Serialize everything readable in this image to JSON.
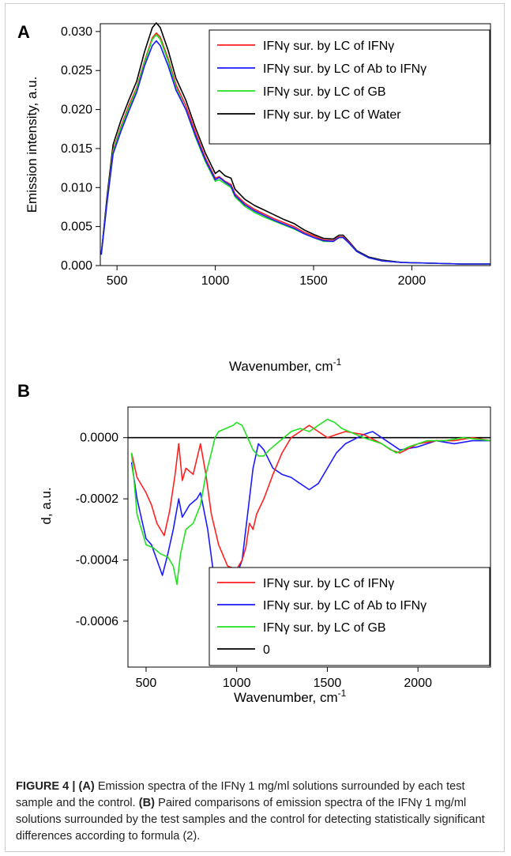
{
  "charts": [
    {
      "panel_label": "A",
      "xlabel": "Wavenumber, cm",
      "xlabel_sup": "-1",
      "ylabel": "Emission intensity, a.u.",
      "xticks": [
        "500",
        "1000",
        "1500",
        "2000"
      ],
      "yticks": [
        "0.000",
        "0.005",
        "0.010",
        "0.015",
        "0.020",
        "0.025",
        "0.030"
      ],
      "legend": [
        {
          "label": "IFNγ sur. by LC of IFNγ",
          "color": "#ff2020"
        },
        {
          "label": "IFNγ sur. by LC of Ab to IFNγ",
          "color": "#1a1aff"
        },
        {
          "label": "IFNγ sur. by LC of GB",
          "color": "#22e022"
        },
        {
          "label": "IFNγ sur. by LC of Water",
          "color": "#000000"
        }
      ]
    },
    {
      "panel_label": "B",
      "xlabel": "Wavenumber, cm",
      "xlabel_sup": "-1",
      "ylabel": "d, a.u.",
      "xticks": [
        "500",
        "1000",
        "1500",
        "2000"
      ],
      "yticks": [
        "0.0000",
        "-0.0002",
        "-0.0004",
        "-0.0006"
      ],
      "legend": [
        {
          "label": "IFNγ sur. by LC of IFNγ",
          "color": "#ff2020"
        },
        {
          "label": "IFNγ sur. by LC of Ab to IFNγ",
          "color": "#1a1aff"
        },
        {
          "label": "IFNγ sur. by LC of GB",
          "color": "#22e022"
        },
        {
          "label": "0",
          "color": "#000000"
        }
      ]
    }
  ],
  "chart_data": [
    {
      "type": "line",
      "xlim": [
        415,
        2400
      ],
      "ylim": [
        0,
        0.031
      ],
      "grid": false,
      "legend_position": "top-right",
      "x": [
        420,
        450,
        480,
        520,
        560,
        600,
        640,
        680,
        700,
        720,
        760,
        800,
        850,
        900,
        950,
        1000,
        1020,
        1050,
        1080,
        1100,
        1150,
        1200,
        1250,
        1300,
        1350,
        1400,
        1450,
        1500,
        1550,
        1600,
        1630,
        1650,
        1680,
        1720,
        1780,
        1850,
        1950,
        2100,
        2250,
        2400
      ],
      "series": [
        {
          "name": "IFNγ sur. by LC of IFNγ",
          "color": "#ff2020",
          "values": [
            0.0014,
            0.0085,
            0.0148,
            0.0178,
            0.0205,
            0.0228,
            0.0262,
            0.0292,
            0.0298,
            0.0293,
            0.0265,
            0.0232,
            0.0205,
            0.017,
            0.0138,
            0.0112,
            0.0114,
            0.0108,
            0.0104,
            0.0092,
            0.008,
            0.0072,
            0.0066,
            0.006,
            0.0055,
            0.005,
            0.0043,
            0.0038,
            0.0033,
            0.0032,
            0.0037,
            0.0037,
            0.003,
            0.0018,
            0.001,
            0.0006,
            0.0004,
            0.0003,
            0.0002,
            0.0002
          ]
        },
        {
          "name": "IFNγ sur. by LC of Ab to IFNγ",
          "color": "#1a1aff",
          "values": [
            0.0014,
            0.0082,
            0.0143,
            0.0172,
            0.0198,
            0.0222,
            0.0256,
            0.0282,
            0.0288,
            0.0282,
            0.0256,
            0.0225,
            0.02,
            0.0166,
            0.0135,
            0.011,
            0.0113,
            0.0107,
            0.0102,
            0.009,
            0.0078,
            0.007,
            0.0064,
            0.0058,
            0.0053,
            0.0048,
            0.0041,
            0.0036,
            0.0032,
            0.0031,
            0.0036,
            0.0036,
            0.0029,
            0.0018,
            0.001,
            0.0006,
            0.0004,
            0.0003,
            0.0002,
            0.0002
          ]
        },
        {
          "name": "IFNγ sur. by LC of GB",
          "color": "#22e022",
          "values": [
            0.0014,
            0.0084,
            0.0146,
            0.0176,
            0.0202,
            0.0226,
            0.026,
            0.029,
            0.0296,
            0.029,
            0.0262,
            0.0228,
            0.02,
            0.0164,
            0.0133,
            0.0108,
            0.011,
            0.0105,
            0.01,
            0.0088,
            0.0076,
            0.0068,
            0.0062,
            0.0057,
            0.0052,
            0.0047,
            0.0041,
            0.0036,
            0.0031,
            0.0031,
            0.0036,
            0.0036,
            0.0029,
            0.0018,
            0.001,
            0.0006,
            0.0004,
            0.0003,
            0.0002,
            0.0002
          ]
        },
        {
          "name": "IFNγ sur. by LC of Water",
          "color": "#000000",
          "values": [
            0.0015,
            0.009,
            0.0155,
            0.0186,
            0.0212,
            0.0236,
            0.0274,
            0.0305,
            0.0311,
            0.0305,
            0.0276,
            0.024,
            0.0212,
            0.0176,
            0.0144,
            0.0118,
            0.0122,
            0.0115,
            0.0112,
            0.0098,
            0.0085,
            0.0077,
            0.0071,
            0.0065,
            0.0059,
            0.0054,
            0.0046,
            0.004,
            0.0035,
            0.0034,
            0.0039,
            0.0039,
            0.0031,
            0.0019,
            0.0011,
            0.0007,
            0.0004,
            0.0003,
            0.0002,
            0.0002
          ]
        }
      ]
    },
    {
      "type": "line",
      "xlim": [
        400,
        2400
      ],
      "ylim": [
        -0.00075,
        0.0001
      ],
      "grid": false,
      "legend_position": "bottom-right",
      "series": [
        {
          "name": "IFNγ sur. by LC of IFNγ",
          "color": "#ff2020",
          "x": [
            420,
            450,
            500,
            530,
            560,
            600,
            630,
            660,
            680,
            700,
            720,
            760,
            800,
            830,
            860,
            900,
            950,
            1000,
            1030,
            1050,
            1070,
            1090,
            1110,
            1150,
            1200,
            1250,
            1300,
            1350,
            1400,
            1450,
            1500,
            1550,
            1600,
            1700,
            1800,
            1850,
            1900,
            2000,
            2100,
            2200,
            2300,
            2400
          ],
          "values": [
            -5e-05,
            -0.00013,
            -0.00018,
            -0.00022,
            -0.00028,
            -0.00032,
            -0.00024,
            -0.00012,
            -2e-05,
            -0.00014,
            -0.0001,
            -0.00012,
            -2e-05,
            -0.00012,
            -0.00025,
            -0.00035,
            -0.00042,
            -0.00043,
            -0.0004,
            -0.00036,
            -0.00028,
            -0.0003,
            -0.00025,
            -0.0002,
            -0.00012,
            -5e-05,
            0.0,
            2e-05,
            4e-05,
            2e-05,
            0.0,
            1e-05,
            2e-05,
            1e-05,
            -2e-05,
            -4e-05,
            -5e-05,
            -2e-05,
            -1e-05,
            -1e-05,
            0.0,
            -1e-05
          ]
        },
        {
          "name": "IFNγ sur. by LC of Ab to IFNγ",
          "color": "#1a1aff",
          "x": [
            420,
            450,
            500,
            530,
            560,
            590,
            620,
            650,
            680,
            700,
            740,
            780,
            800,
            840,
            880,
            900,
            930,
            960,
            1000,
            1030,
            1060,
            1090,
            1120,
            1150,
            1200,
            1250,
            1300,
            1350,
            1400,
            1450,
            1500,
            1550,
            1600,
            1700,
            1750,
            1800,
            1850,
            1900,
            2000,
            2100,
            2200,
            2300,
            2400
          ],
          "values": [
            -8e-05,
            -0.0002,
            -0.00033,
            -0.00035,
            -0.0004,
            -0.00045,
            -0.00038,
            -0.0003,
            -0.0002,
            -0.00026,
            -0.00022,
            -0.0002,
            -0.00018,
            -0.0003,
            -0.00048,
            -0.00052,
            -0.0005,
            -0.00048,
            -0.00045,
            -0.0004,
            -0.00025,
            -0.0001,
            -2e-05,
            -4e-05,
            -0.0001,
            -0.00012,
            -0.00013,
            -0.00015,
            -0.00017,
            -0.00015,
            -0.0001,
            -5e-05,
            -2e-05,
            1e-05,
            2e-05,
            0.0,
            -2e-05,
            -4e-05,
            -3e-05,
            -1e-05,
            -2e-05,
            -1e-05,
            -1e-05
          ]
        },
        {
          "name": "IFNγ sur. by LC of GB",
          "color": "#22e022",
          "x": [
            420,
            450,
            500,
            540,
            580,
            620,
            650,
            670,
            690,
            720,
            760,
            800,
            830,
            860,
            880,
            900,
            940,
            980,
            1000,
            1030,
            1060,
            1090,
            1120,
            1150,
            1180,
            1220,
            1260,
            1300,
            1350,
            1400,
            1450,
            1500,
            1540,
            1580,
            1620,
            1700,
            1800,
            1880,
            1950,
            2050,
            2150,
            2250,
            2400
          ],
          "values": [
            -5e-05,
            -0.00025,
            -0.00035,
            -0.00036,
            -0.00038,
            -0.00039,
            -0.00042,
            -0.00048,
            -0.00038,
            -0.0003,
            -0.00028,
            -0.00022,
            -0.00012,
            -5e-05,
            0.0,
            2e-05,
            3e-05,
            4e-05,
            5e-05,
            4e-05,
            0.0,
            -4e-05,
            -6e-05,
            -6e-05,
            -4e-05,
            -2e-05,
            0.0,
            2e-05,
            3e-05,
            2e-05,
            4e-05,
            6e-05,
            5e-05,
            3e-05,
            2e-05,
            0.0,
            -2e-05,
            -5e-05,
            -3e-05,
            -1e-05,
            -1e-05,
            0.0,
            -1e-05
          ]
        },
        {
          "name": "0",
          "color": "#000000",
          "x": [
            400,
            2400
          ],
          "values": [
            0,
            0
          ]
        }
      ]
    }
  ],
  "caption": {
    "prefix": "FIGURE 4 | ",
    "a_label": "(A)",
    "a_text": " Emission spectra of the IFNγ 1 mg/ml solutions surrounded by each test sample and the control. ",
    "b_label": "(B)",
    "b_text": " Paired comparisons of emission spectra of the IFNγ 1 mg/ml solutions surrounded by the test samples and the control for detecting statistically significant differences according to formula (2)."
  }
}
